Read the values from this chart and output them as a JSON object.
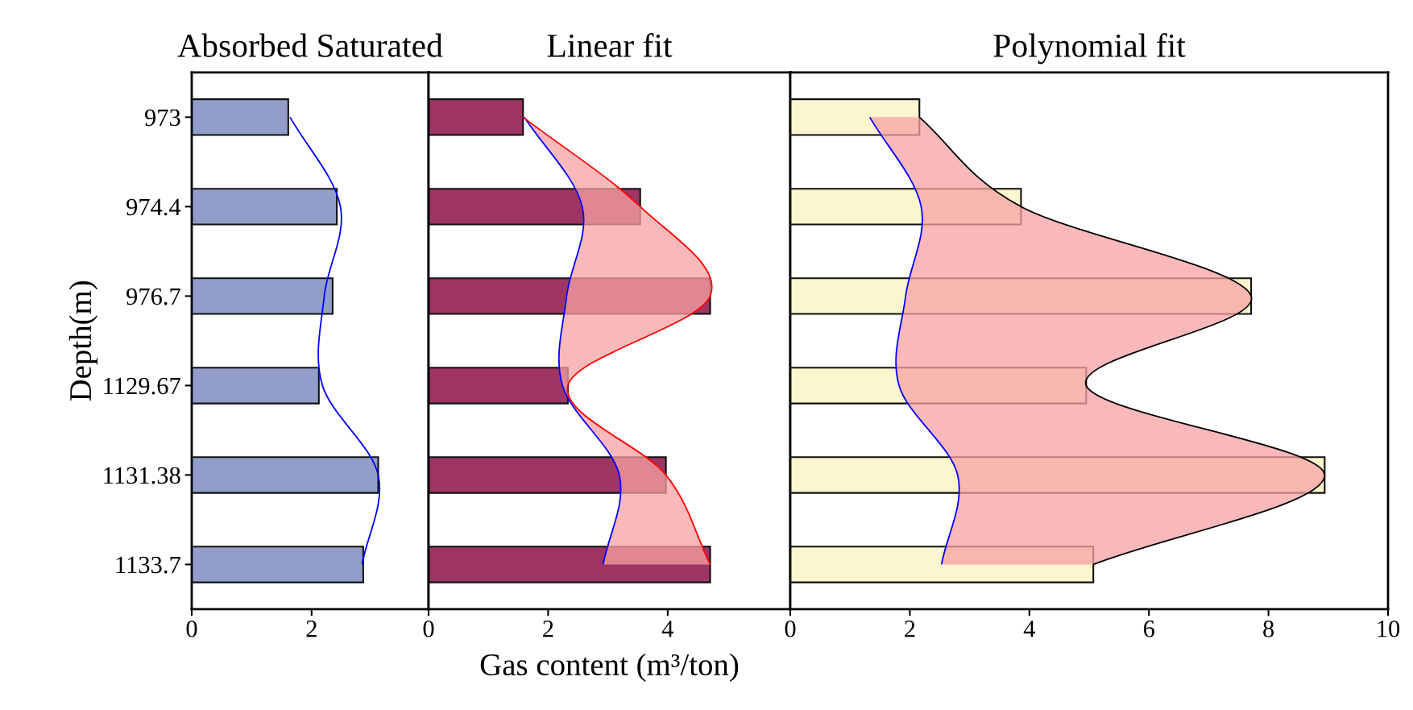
{
  "chart_data": [
    {
      "type": "bar",
      "orientation": "horizontal",
      "title": "Absorbed Saturated",
      "ylabel": "Depth(m)",
      "categories": [
        "973",
        "974.4",
        "976.7",
        "1129.67",
        "1131.38",
        "1133.7"
      ],
      "xlim": [
        0,
        3.95
      ],
      "xticks": [
        0,
        2
      ],
      "series": [
        {
          "type": "bar",
          "color": "#929ec9",
          "values": [
            1.61,
            2.42,
            2.35,
            2.12,
            3.11,
            2.86
          ]
        },
        {
          "type": "line",
          "color": "#0000ff",
          "values": [
            1.64,
            2.48,
            2.21,
            2.18,
            3.11,
            2.84
          ]
        }
      ]
    },
    {
      "type": "bar",
      "orientation": "horizontal",
      "title": "Linear fit",
      "xlabel": "Gas content (m³/ton)",
      "categories": [
        "973",
        "974.4",
        "976.7",
        "1129.67",
        "1131.38",
        "1133.7"
      ],
      "xlim": [
        0,
        6.05
      ],
      "xticks": [
        0,
        2,
        4
      ],
      "tick_labels": "x",
      "series": [
        {
          "type": "bar",
          "color": "#9e3565",
          "values": [
            1.58,
            3.54,
            4.71,
            2.33,
            3.97,
            4.71
          ]
        },
        {
          "type": "line",
          "color": "#0000ff",
          "values": [
            1.6,
            2.57,
            2.31,
            2.24,
            3.19,
            2.92
          ]
        },
        {
          "type": "line",
          "color": "#ff0000",
          "values": [
            1.58,
            3.54,
            4.71,
            2.33,
            3.97,
            4.71
          ],
          "lower": [
            1.6,
            2.57,
            2.31,
            2.24,
            3.19,
            2.92
          ],
          "upper": [
            1.58,
            3.54,
            4.71,
            2.33,
            3.97,
            4.71
          ]
        }
      ]
    },
    {
      "type": "bar",
      "orientation": "horizontal",
      "title": "Polynomial fit",
      "categories": [
        "973",
        "974.4",
        "976.7",
        "1129.67",
        "1131.38",
        "1133.7"
      ],
      "xlim": [
        0,
        10
      ],
      "xticks": [
        0,
        2,
        4,
        6,
        8,
        10
      ],
      "tick_labels": "x",
      "series": [
        {
          "type": "bar",
          "color": "#fbf6cf",
          "values": [
            2.16,
            3.86,
            7.71,
            4.95,
            8.94,
            5.07
          ]
        },
        {
          "type": "line",
          "color": "#0000ff",
          "values": [
            1.33,
            2.19,
            1.93,
            1.82,
            2.8,
            2.53
          ]
        },
        {
          "type": "line",
          "color": "#000000",
          "values": [
            2.16,
            3.86,
            7.71,
            4.95,
            8.94,
            5.07
          ],
          "lower": [
            1.33,
            2.19,
            1.93,
            1.82,
            2.8,
            2.53
          ],
          "upper": [
            2.16,
            3.86,
            7.71,
            4.95,
            8.94,
            5.07
          ]
        }
      ]
    }
  ]
}
